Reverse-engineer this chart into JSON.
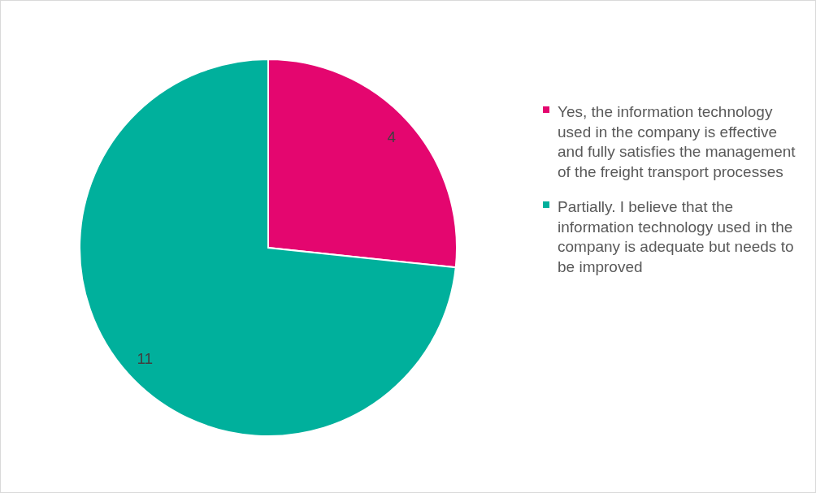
{
  "chart_data": {
    "type": "pie",
    "categories": [
      "Yes, the information technology used in the company is effective and fully satisfies the management of the freight transport processes",
      "Partially. I believe that the information technology used in the company is adequate but needs to be improved"
    ],
    "values": [
      4,
      11
    ],
    "colors": [
      "#e4066f",
      "#00b09c"
    ],
    "data_labels": true,
    "legend": "right"
  }
}
